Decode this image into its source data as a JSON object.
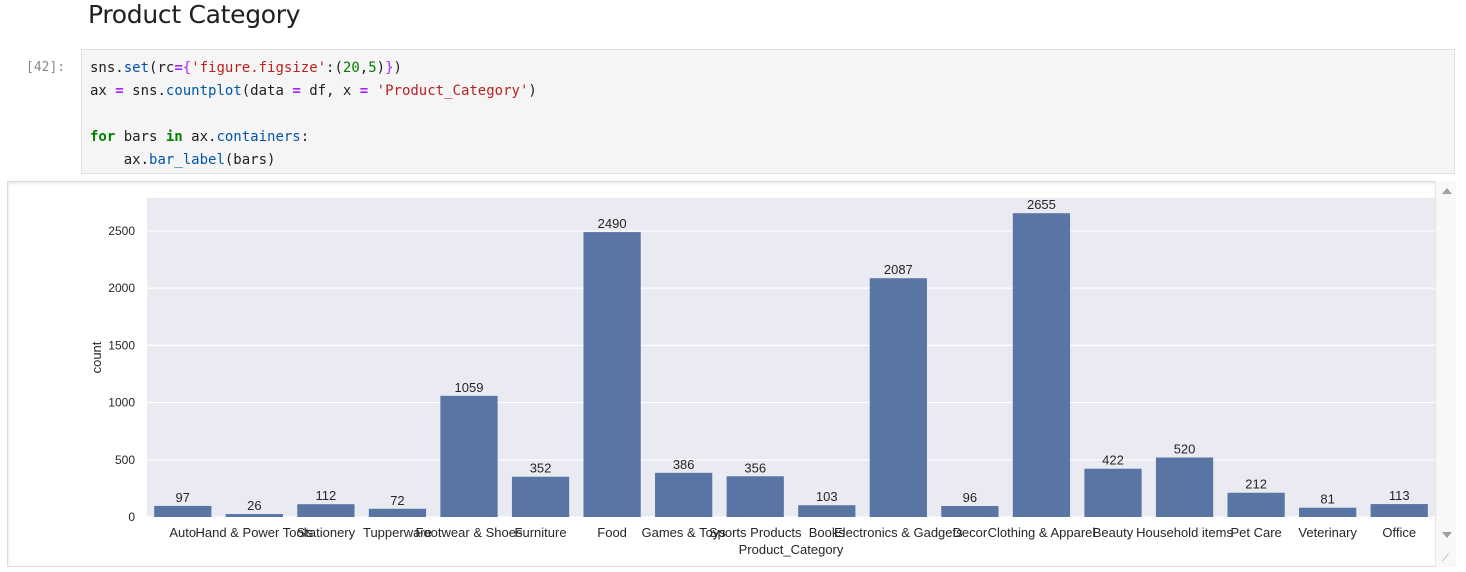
{
  "heading": "Product Category",
  "prompt": "[42]:",
  "code": {
    "line1": {
      "a": "sns.",
      "b": "set",
      "c": "(rc",
      "d": "=",
      "e": "{",
      "f": "'figure.figsize'",
      "g": ":(",
      "h": "20",
      "i": ",",
      "j": "5",
      "k": ")",
      "l": "}",
      "m": ")"
    },
    "line2": {
      "a": "ax ",
      "b": "=",
      "c": " sns.",
      "d": "countplot",
      "e": "(data ",
      "f": "=",
      "g": " df, x ",
      "h": "=",
      "i": " ",
      "j": "'Product_Category'",
      "k": ")"
    },
    "line4": {
      "a": "for",
      "b": " bars ",
      "c": "in",
      "d": " ax.",
      "e": "containers",
      "f": ":"
    },
    "line5": {
      "a": "    ax.",
      "b": "bar_label",
      "c": "(bars)"
    }
  },
  "icons": {
    "scroll_up": "scroll-up-arrow-icon",
    "scroll_down": "scroll-down-arrow-icon",
    "resize": "resize-grip-icon"
  },
  "chart_data": {
    "type": "bar",
    "categories": [
      "Auto",
      "Hand & Power Tools",
      "Stationery",
      "Tupperware",
      "Footwear & Shoes",
      "Furniture",
      "Food",
      "Games & Toys",
      "Sports Products",
      "Books",
      "Electronics & Gadgets",
      "Decor",
      "Clothing & Apparel",
      "Beauty",
      "Household items",
      "Pet Care",
      "Veterinary",
      "Office"
    ],
    "values": [
      97,
      26,
      112,
      72,
      1059,
      352,
      2490,
      386,
      356,
      103,
      2087,
      96,
      2655,
      422,
      520,
      212,
      81,
      113
    ],
    "title": "",
    "xlabel": "Product_Category",
    "ylabel": "count",
    "ylim": [
      0,
      2788
    ],
    "yticks": [
      0,
      500,
      1000,
      1500,
      2000,
      2500
    ],
    "grid": true,
    "bar_color": "#5975a4",
    "background": "#eaeaf2"
  }
}
